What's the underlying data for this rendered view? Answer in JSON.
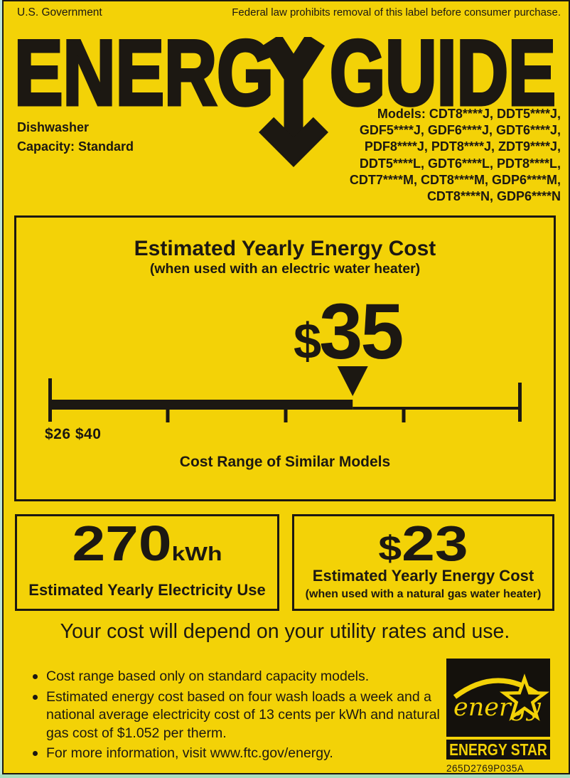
{
  "colors": {
    "background": "#F3D207",
    "ink": "#1C1812",
    "energy_star_bg": "#14110C",
    "scan_edge": "#A8DDBE"
  },
  "header": {
    "left": "U.S. Government",
    "right": "Federal law prohibits removal of this label before consumer purchase."
  },
  "logo": {
    "word_left": "ENERG",
    "word_right": "GUIDE"
  },
  "product": {
    "type": "Dishwasher",
    "capacity": "Capacity: Standard"
  },
  "models_lines": [
    "Models: CDT8****J, DDT5****J,",
    "GDF5****J, GDF6****J, GDT6****J,",
    "PDF8****J, PDT8****J, ZDT9****J,",
    "DDT5****L, GDT6****L, PDT8****L,",
    "CDT7****M, CDT8****M, GDP6****M,",
    "CDT8****N, GDP6****N"
  ],
  "main_box": {
    "title": "Estimated Yearly Energy Cost",
    "subtitle": "(when used with an electric water heater)",
    "value_currency": "$",
    "value_number": "35",
    "range_labels": "$26 $40",
    "caption": "Cost Range of Similar Models"
  },
  "chart_data": {
    "type": "scale",
    "title": "Cost Range of Similar Models",
    "min": 26,
    "max": 40,
    "value": 35,
    "min_label": "$26",
    "max_label": "$40"
  },
  "electricity_box": {
    "value": "270",
    "unit": "kWh",
    "caption": "Estimated Yearly Electricity Use"
  },
  "gas_box": {
    "currency": "$",
    "value": "23",
    "caption": "Estimated Yearly Energy Cost",
    "subcaption": "(when used with a natural gas water heater)"
  },
  "cost_note": "Your cost will depend on your utility rates and use.",
  "bullets": [
    "Cost range based only on standard capacity models.",
    "Estimated energy cost based on four wash loads a week and a national average electricity cost of 13 cents per kWh and natural gas cost of $1.052 per therm.",
    "For more information, visit www.ftc.gov/energy."
  ],
  "energy_star": {
    "script_text": "energy",
    "band_text": "ENERGY STAR"
  },
  "part_number": "265D2769P035A"
}
